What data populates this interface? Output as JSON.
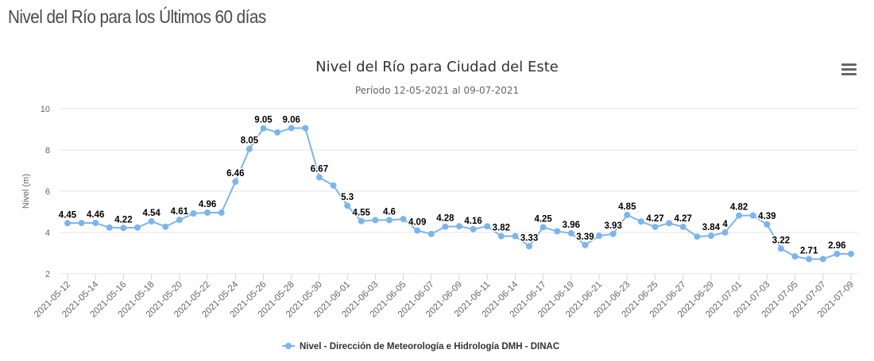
{
  "page": {
    "title": "Nivel del Río para los Últimos 60 días"
  },
  "menu": {
    "icon": "hamburger-menu-icon"
  },
  "chart_data": {
    "type": "line",
    "title": "Nivel del Río para Ciudad del Este",
    "subtitle": "Período 12-05-2021 al 09-07-2021",
    "xlabel": "",
    "ylabel": "Nivel (m)",
    "ylim": [
      2,
      10
    ],
    "yticks": [
      2,
      4,
      6,
      8,
      10
    ],
    "grid": true,
    "legend_position": "bottom-center",
    "series_color": "#7cb5ec",
    "x_tick_labels": [
      "2021-05-12",
      "2021-05-14",
      "2021-05-16",
      "2021-05-18",
      "2021-05-20",
      "2021-05-22",
      "2021-05-24",
      "2021-05-26",
      "2021-05-28",
      "2021-05-30",
      "2021-06-01",
      "2021-06-03",
      "2021-06-05",
      "2021-06-07",
      "2021-06-09",
      "2021-06-11",
      "2021-06-14",
      "2021-06-17",
      "2021-06-19",
      "2021-06-21",
      "2021-06-23",
      "2021-06-25",
      "2021-06-27",
      "2021-06-29",
      "2021-07-01",
      "2021-07-03",
      "2021-07-05",
      "2021-07-07",
      "2021-07-09"
    ],
    "series": [
      {
        "name": "Nivel - Dirección de Meteorología e Hidrología DMH - DINAC",
        "values": [
          4.45,
          4.46,
          4.46,
          4.24,
          4.22,
          4.24,
          4.54,
          4.28,
          4.61,
          4.92,
          4.96,
          4.96,
          6.46,
          8.05,
          9.05,
          8.85,
          9.06,
          9.06,
          6.67,
          6.28,
          5.3,
          4.55,
          4.6,
          4.6,
          4.65,
          4.09,
          3.93,
          4.28,
          4.3,
          4.16,
          4.3,
          3.82,
          3.82,
          3.33,
          4.25,
          4.06,
          3.96,
          3.39,
          3.84,
          3.93,
          4.85,
          4.53,
          4.27,
          4.45,
          4.27,
          3.8,
          3.84,
          4,
          4.82,
          4.82,
          4.39,
          3.22,
          2.84,
          2.71,
          2.71,
          2.96,
          2.96
        ],
        "labeled_indices": [
          0,
          2,
          4,
          6,
          8,
          10,
          12,
          13,
          14,
          16,
          18,
          20,
          21,
          23,
          25,
          27,
          29,
          31,
          33,
          34,
          36,
          37,
          39,
          40,
          42,
          44,
          46,
          47,
          48,
          50,
          51,
          53,
          55
        ]
      }
    ]
  }
}
